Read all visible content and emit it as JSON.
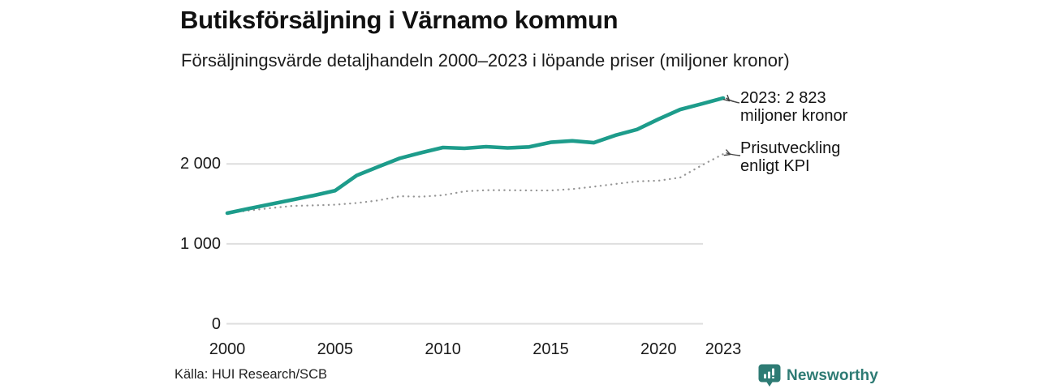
{
  "header": {
    "title": "Butiksförsäljning i Värnamo kommun",
    "subtitle": "Försäljningsvärde detaljhandeln 2000–2023 i löpande priser (miljoner kronor)"
  },
  "chart_data": {
    "type": "line",
    "title": "Butiksförsäljning i Värnamo kommun",
    "subtitle": "Försäljningsvärde detaljhandeln 2000–2023 i löpande priser (miljoner kronor)",
    "x": [
      2000,
      2001,
      2002,
      2003,
      2004,
      2005,
      2006,
      2007,
      2008,
      2009,
      2010,
      2011,
      2012,
      2013,
      2014,
      2015,
      2016,
      2017,
      2018,
      2019,
      2020,
      2021,
      2022,
      2023
    ],
    "series": [
      {
        "name": "Försäljningsvärde i löpande priser (miljoner kronor)",
        "style": "solid",
        "color": "#1d9c8b",
        "values": [
          1384,
          1440,
          1495,
          1550,
          1605,
          1665,
          1855,
          1965,
          2070,
          2140,
          2205,
          2195,
          2215,
          2200,
          2212,
          2270,
          2288,
          2265,
          2358,
          2430,
          2560,
          2680,
          2750,
          2823
        ]
      },
      {
        "name": "Prisutveckling enligt KPI",
        "style": "dotted",
        "color": "#969696",
        "values": [
          1384,
          1416,
          1447,
          1474,
          1481,
          1489,
          1510,
          1543,
          1596,
          1589,
          1608,
          1656,
          1671,
          1671,
          1668,
          1668,
          1685,
          1715,
          1749,
          1781,
          1790,
          1829,
          1982,
          2123
        ]
      }
    ],
    "yticks": [
      {
        "value": 0,
        "label": "0"
      },
      {
        "value": 1000,
        "label": "1 000"
      },
      {
        "value": 2000,
        "label": "2 000"
      }
    ],
    "xticks": [
      {
        "year": 2000,
        "label": "2000"
      },
      {
        "year": 2005,
        "label": "2005"
      },
      {
        "year": 2010,
        "label": "2010"
      },
      {
        "year": 2015,
        "label": "2015"
      },
      {
        "year": 2020,
        "label": "2020"
      },
      {
        "year": 2023,
        "label": "2023"
      }
    ],
    "ylim": [
      0,
      3040
    ],
    "grid": "horizontal-only",
    "legend": "none (direct annotations)",
    "annotations": {
      "sales": {
        "line1": "2023: 2 823",
        "line2": "miljoner kronor"
      },
      "kpi": {
        "line1": "Prisutveckling",
        "line2": "enligt KPI"
      }
    },
    "last_value_sales": 2823,
    "last_value_kpi": 2123
  },
  "footer": {
    "source": "Källa: HUI Research/SCB",
    "brand": "Newsworthy"
  },
  "colors": {
    "sales_line": "#1d9c8b",
    "kpi_dots": "#969696",
    "gridline": "#dedede",
    "brand": "#2e7b74",
    "arrow": "#444444"
  }
}
